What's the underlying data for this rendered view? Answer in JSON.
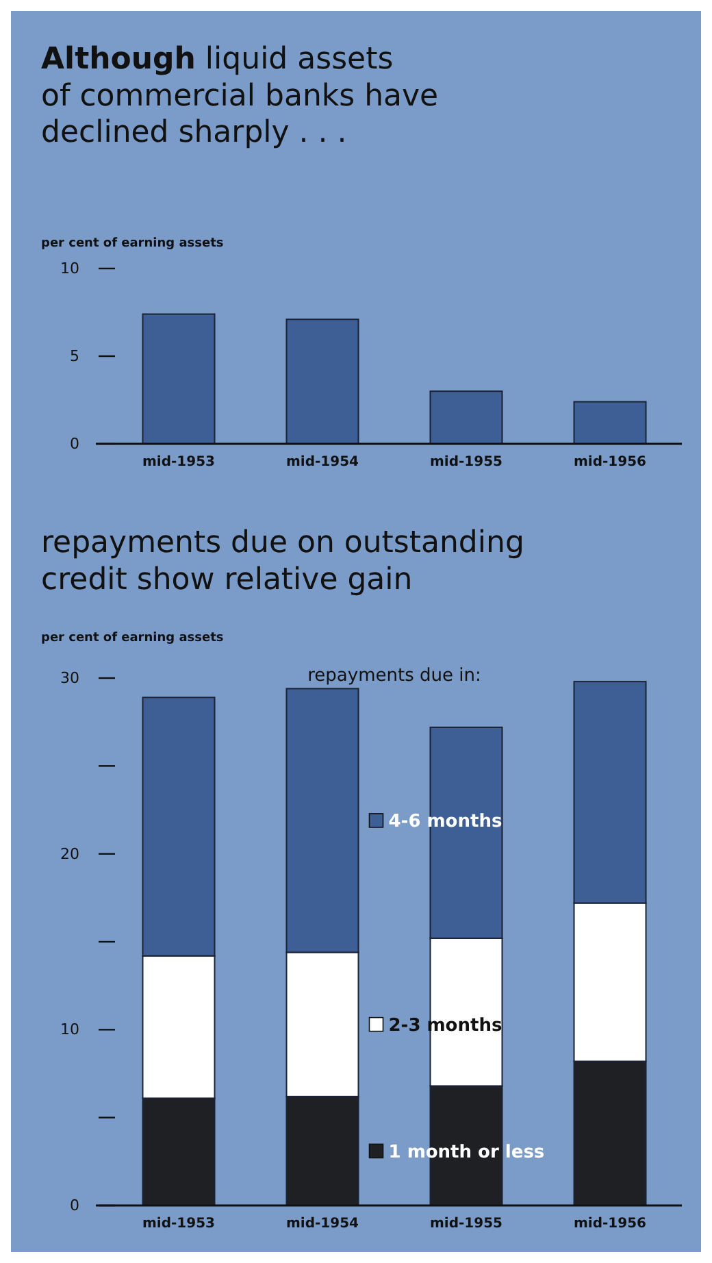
{
  "chart_data": [
    {
      "type": "bar",
      "title": "Although liquid assets of commercial banks have declined sharply . . .",
      "ylabel": "per cent of earning assets",
      "categories": [
        "mid-1953",
        "mid-1954",
        "mid-1955",
        "mid-1956"
      ],
      "values": [
        7.4,
        7.1,
        3.0,
        2.4
      ],
      "color": "#3d5f95",
      "ylim": [
        0,
        10
      ],
      "yticks": [
        0,
        5,
        10
      ],
      "grid": false,
      "legend": false
    },
    {
      "type": "bar",
      "title": "repayments due on outstanding credit show relative gain",
      "ylabel": "per cent of earning assets",
      "legend_title": "repayments due in:",
      "categories": [
        "mid-1953",
        "mid-1954",
        "mid-1955",
        "mid-1956"
      ],
      "stacked": true,
      "series": [
        {
          "name": "1 month or less",
          "color": "#1e2024",
          "values": [
            6.1,
            6.2,
            6.8,
            8.2
          ]
        },
        {
          "name": "2-3 months",
          "color": "#ffffff",
          "values": [
            8.1,
            8.2,
            8.4,
            9.0
          ]
        },
        {
          "name": "4-6 months",
          "color": "#3d5f95",
          "values": [
            14.7,
            15.0,
            12.0,
            12.6
          ]
        }
      ],
      "ylim": [
        0,
        30
      ],
      "yticks": [
        0,
        {
          "value": 5,
          "label": null
        },
        10,
        {
          "value": 15,
          "label": null
        },
        20,
        {
          "value": 25,
          "label": null
        },
        30
      ],
      "grid": false,
      "legend": "center"
    }
  ]
}
